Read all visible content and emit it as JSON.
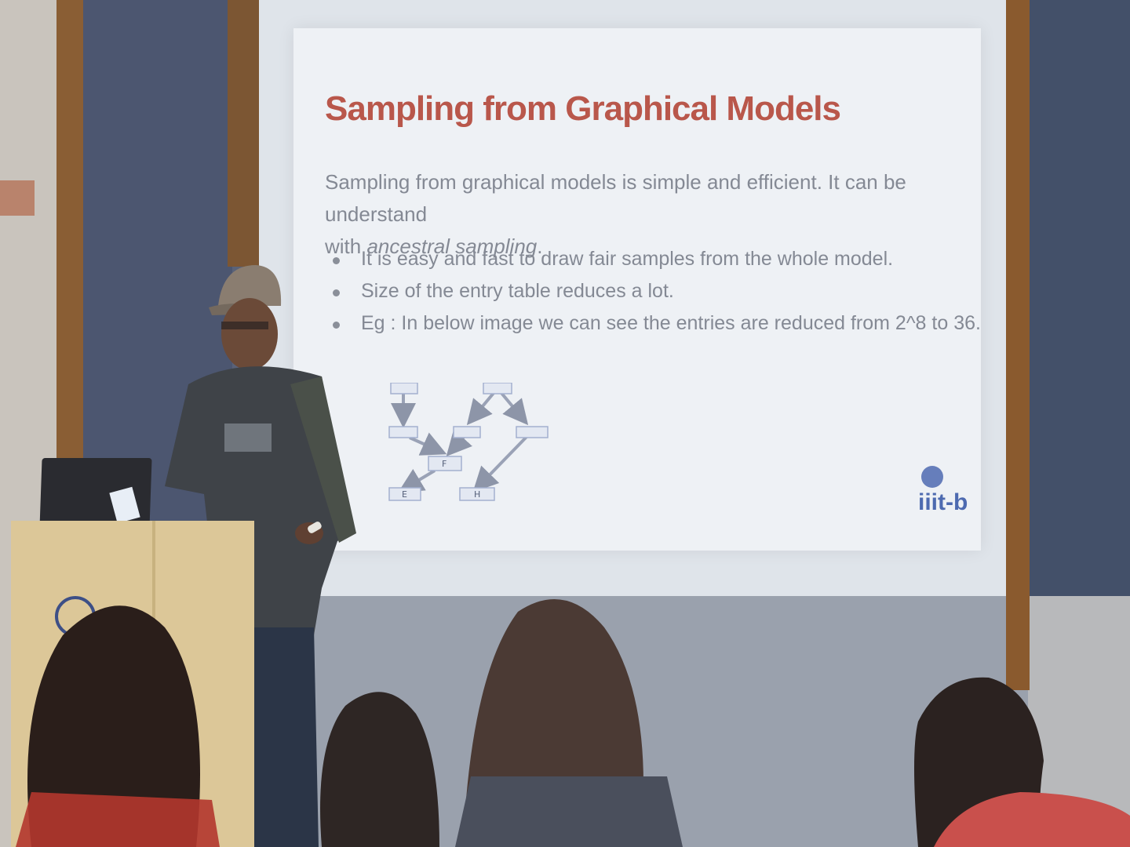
{
  "slide": {
    "title": "Sampling from Graphical Models",
    "paragraph_line1": "Sampling from graphical models is simple and efficient. It can be understand",
    "paragraph_line2_prefix": "with ",
    "paragraph_line2_italic": "ancestral sampling",
    "paragraph_line2_suffix": ".",
    "bullets": [
      "It is easy and fast to draw fair samples from the whole model.",
      "Size of the entry table reduces a lot.",
      "Eg : In below image we can see the entries are reduced from 2^8 to 36."
    ],
    "diagram_nodes": [
      "",
      "",
      "",
      "",
      "",
      "F",
      "E",
      "H"
    ],
    "logo_text": "iiit-b"
  },
  "colors": {
    "title": "#b9574b",
    "body_text": "#848994",
    "slide_bg": "#eef1f5",
    "wall_blue": "#4c5670"
  }
}
